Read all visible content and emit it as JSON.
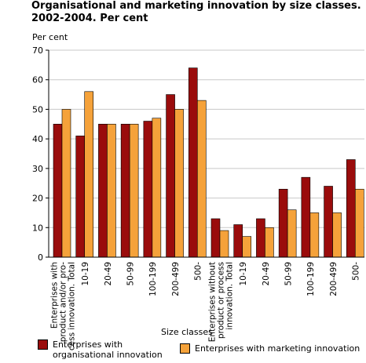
{
  "title": {
    "line1": "Organisational and marketing innovation by size classes.",
    "line2": "2002-2004. Per cent"
  },
  "chart_data": {
    "type": "bar",
    "categories": [
      [
        "Enterprises with",
        "product and/or pro-",
        "cess innovation. Total"
      ],
      [
        "10-19"
      ],
      [
        "20-49"
      ],
      [
        "50-99"
      ],
      [
        "100-199"
      ],
      [
        "200-499"
      ],
      [
        "500-"
      ],
      [
        "Enterprises without",
        "product or process",
        "innovation. Total"
      ],
      [
        "10-19"
      ],
      [
        "20-49"
      ],
      [
        "50-99"
      ],
      [
        "100-199"
      ],
      [
        "200-499"
      ],
      [
        "500-"
      ]
    ],
    "series": [
      {
        "name": "Enterprises with organisational innovation",
        "name_lines": [
          "Enterprises with",
          "organisational innovation"
        ],
        "color": "#9a0c0c",
        "values": [
          45,
          41,
          45,
          45,
          46,
          55,
          64,
          13,
          11,
          13,
          23,
          27,
          24,
          33
        ]
      },
      {
        "name": "Enterprises with marketing innovation",
        "name_lines": [
          "Enterprises with marketing innovation"
        ],
        "color": "#f5a23a",
        "values": [
          50,
          56,
          45,
          45,
          47,
          50,
          53,
          9,
          7,
          10,
          16,
          15,
          15,
          23
        ]
      }
    ],
    "ylabel": "Per cent",
    "xlabel": "Size classes",
    "ylim": [
      0,
      70
    ],
    "yticks": [
      0,
      10,
      20,
      30,
      40,
      50,
      60,
      70
    ],
    "grid": true,
    "legend": "bottom"
  }
}
